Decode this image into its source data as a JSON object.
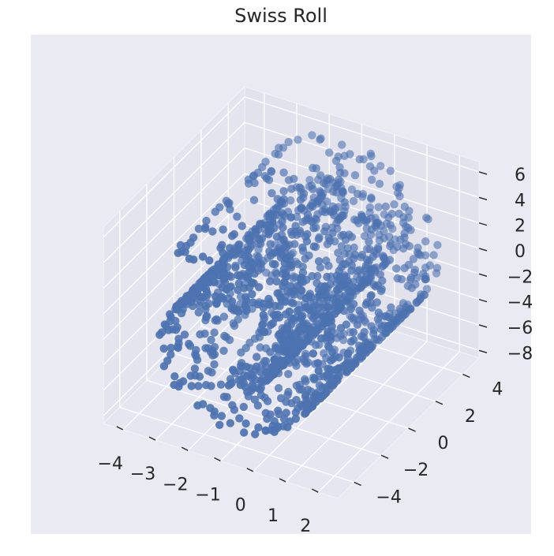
{
  "chart_data": {
    "type": "scatter",
    "projection": "3d",
    "title": "Swiss Roll",
    "xlabel": "",
    "ylabel": "",
    "zlabel": "",
    "xlim": [
      -4.6,
      2.6
    ],
    "ylim": [
      -5.2,
      5.2
    ],
    "zlim": [
      -8.6,
      6.8
    ],
    "x_ticks": [
      "−4",
      "−3",
      "−2",
      "−1",
      "0",
      "1",
      "2"
    ],
    "y_ticks": [
      "−4",
      "−2",
      "0",
      "2",
      "4"
    ],
    "z_ticks": [
      "−8",
      "−6",
      "−4",
      "−2",
      "0",
      "2",
      "4",
      "6"
    ],
    "grid": true,
    "legend": "none",
    "point_color": "#4c72b0",
    "pane_color": "#eaeaf2",
    "grid_color": "#ffffff",
    "points_per_series": 1500,
    "series": [
      {
        "generator": "swiss-roll",
        "parameter_t": [
          1.5,
          4.7
        ],
        "x": "t·cos(t)/2 − 1",
        "y": "uniform",
        "z": "t·sin(t)/2 − 1",
        "values_sampled": "approximately 1500 points"
      }
    ]
  }
}
